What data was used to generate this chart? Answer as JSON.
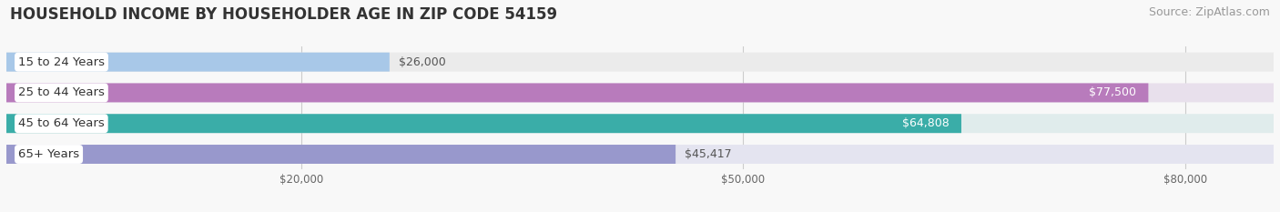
{
  "title": "HOUSEHOLD INCOME BY HOUSEHOLDER AGE IN ZIP CODE 54159",
  "source": "Source: ZipAtlas.com",
  "categories": [
    "15 to 24 Years",
    "25 to 44 Years",
    "45 to 64 Years",
    "65+ Years"
  ],
  "values": [
    26000,
    77500,
    64808,
    45417
  ],
  "bar_colors": [
    "#a8c8e8",
    "#b87bbc",
    "#3aada8",
    "#9898cc"
  ],
  "bg_colors": [
    "#ebebeb",
    "#e8e0ec",
    "#e0ecec",
    "#e4e4f0"
  ],
  "value_labels": [
    "$26,000",
    "$77,500",
    "$64,808",
    "$45,417"
  ],
  "value_label_white": [
    false,
    true,
    true,
    false
  ],
  "value_label_inside": [
    false,
    true,
    true,
    false
  ],
  "xlim_min": 0,
  "xlim_max": 86000,
  "xticks": [
    20000,
    50000,
    80000
  ],
  "xtick_labels": [
    "$20,000",
    "$50,000",
    "$80,000"
  ],
  "title_fontsize": 12,
  "source_fontsize": 9,
  "label_fontsize": 9.5,
  "value_fontsize": 9,
  "bar_height": 0.62,
  "fig_bg": "#f8f8f8",
  "bar_gap": 0.15
}
